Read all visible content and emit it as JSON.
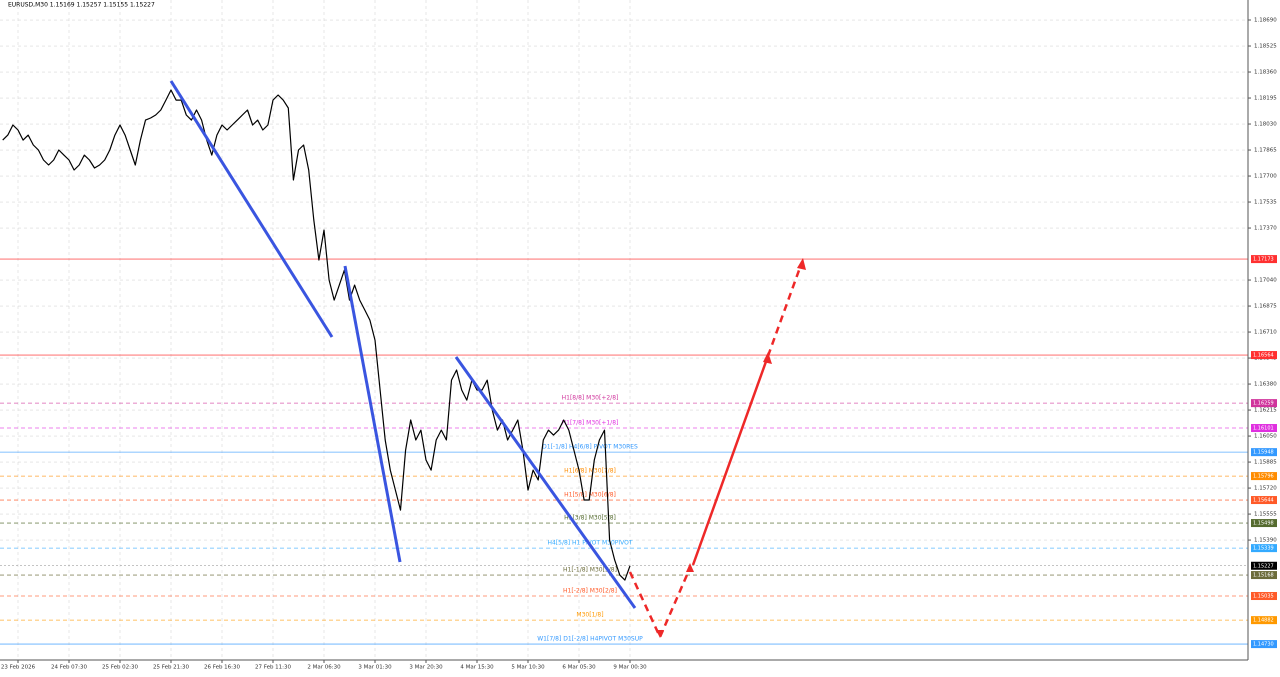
{
  "chart_data": {
    "type": "line",
    "title": "EURUSD,M30  1.15169 1.15257 1.15155 1.15227",
    "color": "#000000",
    "grid": true,
    "categories": [
      null,
      null,
      null,
      "23 Feb 2026",
      null,
      null,
      null,
      null,
      null,
      null,
      null,
      null,
      null,
      "24 Feb 07:30",
      null,
      null,
      null,
      null,
      null,
      null,
      null,
      null,
      null,
      "25 Feb 02:30",
      null,
      null,
      null,
      null,
      null,
      null,
      null,
      null,
      null,
      "25 Feb 21:30",
      null,
      null,
      null,
      null,
      null,
      null,
      null,
      null,
      null,
      "26 Feb 16:30",
      null,
      null,
      null,
      null,
      null,
      null,
      null,
      null,
      null,
      "27 Feb 11:30",
      null,
      null,
      null,
      null,
      null,
      null,
      null,
      null,
      null,
      "2 Mar 06:30",
      null,
      null,
      null,
      null,
      null,
      null,
      null,
      null,
      null,
      "3 Mar 01:30",
      null,
      null,
      null,
      null,
      null,
      null,
      null,
      null,
      null,
      "3 Mar 20:30",
      null,
      null,
      null,
      null,
      null,
      null,
      null,
      null,
      null,
      "4 Mar 15:30",
      null,
      null,
      null,
      null,
      null,
      null,
      null,
      null,
      null,
      "5 Mar 10:30",
      null,
      null,
      null,
      null,
      null,
      null,
      null,
      null,
      null,
      "6 Mar 05:30",
      null,
      null,
      null,
      null,
      null,
      null,
      null,
      null,
      null,
      "9 Mar 00:30"
    ],
    "values": [
      1.17928,
      1.1796,
      1.18024,
      1.17992,
      1.17928,
      1.1796,
      1.17897,
      1.17865,
      1.17802,
      1.1777,
      1.17802,
      1.17865,
      1.17833,
      1.17802,
      1.17738,
      1.1777,
      1.17833,
      1.17802,
      1.17751,
      1.1777,
      1.17802,
      1.17865,
      1.1796,
      1.18024,
      1.1796,
      1.17865,
      1.1777,
      1.17928,
      1.18055,
      1.18068,
      1.18087,
      1.18119,
      1.18182,
      1.18246,
      1.18182,
      1.18182,
      1.18087,
      1.18055,
      1.18119,
      1.18055,
      1.17928,
      1.17833,
      1.1796,
      1.18024,
      1.17992,
      1.18024,
      1.18055,
      1.18087,
      1.18119,
      1.18024,
      1.18055,
      1.17992,
      1.18024,
      1.18182,
      1.18214,
      1.18182,
      1.18132,
      1.17675,
      1.17865,
      1.17897,
      1.17738,
      1.17421,
      1.17167,
      1.17357,
      1.1704,
      1.16913,
      1.17008,
      1.17103,
      1.16913,
      1.17008,
      1.16913,
      1.1685,
      1.16786,
      1.16659,
      1.16342,
      1.16025,
      1.15834,
      1.15707,
      1.1558,
      1.15961,
      1.16152,
      1.16025,
      1.16088,
      1.15898,
      1.15834,
      1.16025,
      1.16088,
      1.16025,
      1.16405,
      1.16469,
      1.16342,
      1.16278,
      1.16405,
      1.16342,
      1.16342,
      1.16405,
      1.16215,
      1.16088,
      1.16152,
      1.16025,
      1.16088,
      1.16152,
      1.15961,
      1.15707,
      1.15834,
      1.15771,
      1.16025,
      1.16088,
      1.16056,
      1.16088,
      1.16152,
      1.16088,
      1.15961,
      1.15834,
      1.15644,
      1.15644,
      1.15898,
      1.16025,
      1.16088,
      1.1539,
      1.15263,
      1.15168,
      1.15136,
      1.15227
    ],
    "ylim": [
      1.14629,
      1.18817
    ],
    "yticks": [
      {
        "value": 1.1869,
        "label": "1.18690"
      },
      1.18525,
      {
        "value": 1.1836,
        "label": "1.18360"
      },
      1.18195,
      {
        "value": 1.1803,
        "label": "1.18030"
      },
      1.17865,
      {
        "value": 1.177,
        "label": "1.17700"
      },
      1.17535,
      {
        "value": 1.1737,
        "label": "1.17370"
      },
      {
        "value": 1.1704,
        "label": "1.17040"
      },
      1.16875,
      {
        "value": 1.1671,
        "label": "1.16710"
      },
      1.16545,
      {
        "value": 1.1638,
        "label": "1.16380"
      },
      1.16215,
      {
        "value": 1.1605,
        "label": "1.16050"
      },
      1.15885,
      {
        "value": 1.1572,
        "label": "1.15720"
      },
      1.15555,
      {
        "value": 1.1539,
        "label": "1.15390"
      }
    ],
    "levels": [
      {
        "value": 1.17173,
        "price_label": "1.17173",
        "color": "#ff3030",
        "dashed": false
      },
      {
        "value": 1.16564,
        "price_label": "1.16564",
        "color": "#ff3030",
        "dashed": false
      },
      {
        "label": "H1[8/8] M30[+2/8]",
        "value": 1.16259,
        "price_label": "1.16259",
        "color": "#d0349c",
        "dashed": true
      },
      {
        "label": "H1[7/8] M30[+1/8]",
        "value": 1.16101,
        "price_label": "1.16101",
        "color": "#e030e0",
        "dashed": true
      },
      {
        "label": "D1[-1/8] H4[6/8] PIVOT M30RES",
        "value": 1.15948,
        "price_label": "1.15948",
        "color": "#3399ff",
        "dashed": false
      },
      {
        "label": "H1[6/8] M30[7/8]",
        "value": 1.15796,
        "price_label": "1.15796",
        "color": "#ff8c00",
        "dashed": true
      },
      {
        "label": "H1[5/8] M30[6/8]",
        "value": 1.15644,
        "price_label": "1.15644",
        "color": "#ff5a28",
        "dashed": true
      },
      {
        "label": "H1[3/8] M30[5/8]",
        "value": 1.15498,
        "price_label": "1.15498",
        "color": "#556b2f",
        "dashed": true
      },
      {
        "label": "H4[5/8] H1 PIVOT M30PIVOT",
        "value": 1.15339,
        "price_label": "1.15339",
        "color": "#33aaff",
        "dashed": true
      },
      {
        "label": "H1[-1/8] M30[3/8]",
        "value": 1.15168,
        "price_label": "1.15168",
        "color": "#6b6b3a",
        "dashed": true
      },
      {
        "label": "H1[-2/8] M30[2/8]",
        "value": 1.15035,
        "price_label": "1.15035",
        "color": "#ff5a28",
        "dashed": true
      },
      {
        "label": "M30[1/8]",
        "value": 1.14882,
        "price_label": "1.14882",
        "color": "#ff9900",
        "dashed": true
      },
      {
        "label": "W1[7/8] D1[-2/8] H4PIVOT M30SUP",
        "value": 1.1473,
        "price_label": "1.14730",
        "color": "#3399ff",
        "dashed": false
      }
    ],
    "last": {
      "value": 1.15227,
      "label": "1.15227"
    }
  }
}
